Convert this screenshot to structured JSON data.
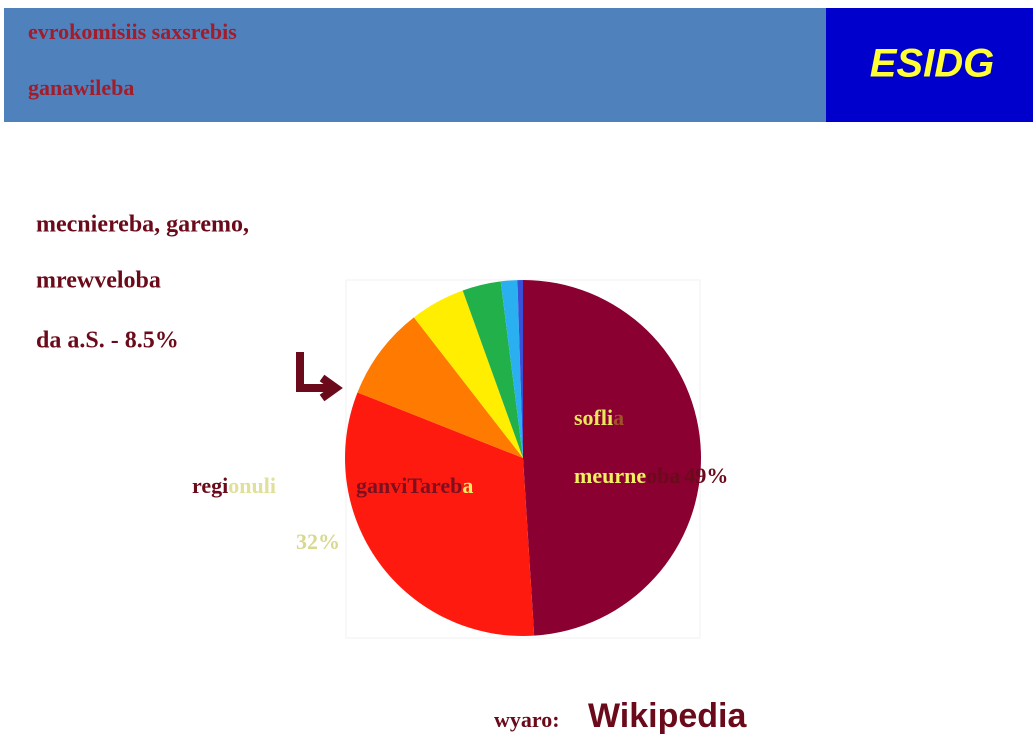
{
  "header": {
    "title_lines": [
      "evrokomisiis saxsrebis",
      "ganawileba"
    ],
    "logo": "ESIDG"
  },
  "side_note": [
    "mecniereba, garemo,",
    "mrewveloba",
    "da a.S. - 8.5%"
  ],
  "source": {
    "label": "wyaro:",
    "name": "Wikipedia"
  },
  "chart_data": {
    "type": "pie",
    "values": [
      49,
      32,
      8.5,
      5,
      3.5,
      1.5,
      0.5
    ],
    "value_labels": [
      "49%",
      "32%",
      null,
      null,
      null,
      null,
      null
    ],
    "colors": [
      "#8a0031",
      "#ff1a0f",
      "#ff7a00",
      "#ffee00",
      "#22b04a",
      "#2ab0f0",
      "#3a4fd8"
    ],
    "label_pieces": [
      [
        [
          {
            "text": "sofli",
            "color": "#e8e85a"
          },
          {
            "text": "a",
            "color": "#a0522d"
          }
        ],
        [
          {
            "text": "meurne",
            "color": "#f0f060"
          },
          {
            "text": "oba",
            "color": "#6a0a1a"
          }
        ]
      ],
      [
        [
          {
            "text": "regi",
            "color": "#6a0a1a"
          },
          {
            "text": "onuli",
            "color": "#e0e09a"
          }
        ],
        [
          {
            "text": "ganviTareb",
            "color": "#7a1020"
          },
          {
            "text": "a",
            "color": "#f0f060"
          }
        ]
      ],
      null,
      null,
      null,
      null,
      null
    ]
  }
}
